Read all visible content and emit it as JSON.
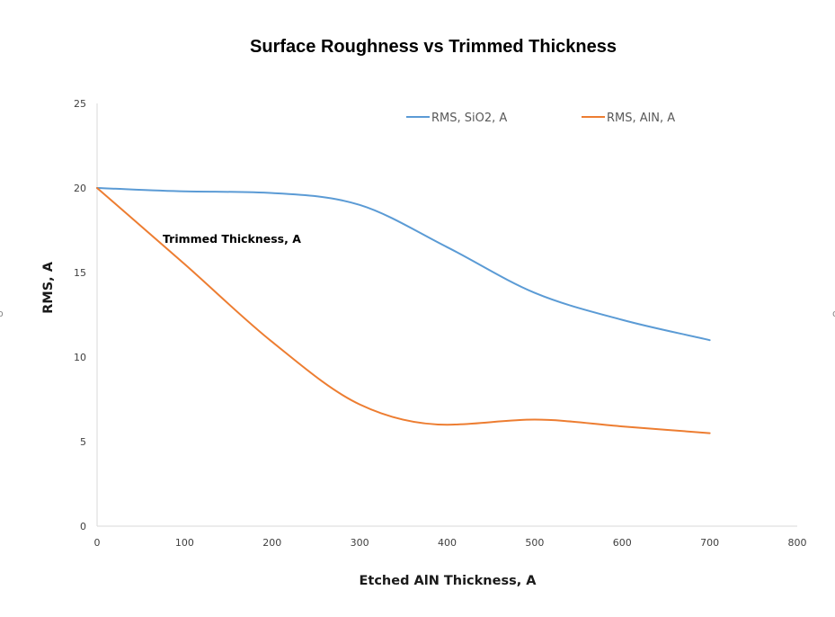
{
  "chart_data": {
    "type": "line",
    "title": "Surface Roughness vs Trimmed Thickness",
    "xlabel": "Etched AlN Thickness, A",
    "ylabel": "RMS, A",
    "xlim": [
      0,
      800
    ],
    "ylim": [
      0,
      25
    ],
    "xticks": [
      0,
      100,
      200,
      300,
      400,
      500,
      600,
      700,
      800
    ],
    "yticks": [
      0,
      5,
      10,
      15,
      20,
      25
    ],
    "grid": false,
    "smooth": true,
    "legend_position": "top",
    "annotation": "Trimmed Thickness, A",
    "series": [
      {
        "name": "RMS, SiO2, A",
        "color": "#5b9bd5",
        "x": [
          0,
          100,
          200,
          300,
          400,
          500,
          600,
          700
        ],
        "y": [
          20.0,
          19.8,
          19.7,
          19.0,
          16.5,
          13.8,
          12.2,
          11.0
        ]
      },
      {
        "name": "RMS, AlN, A",
        "color": "#ed7d31",
        "x": [
          0,
          100,
          200,
          300,
          400,
          500,
          600,
          700
        ],
        "y": [
          20.0,
          15.5,
          10.9,
          7.2,
          6.0,
          6.3,
          5.9,
          5.5
        ]
      }
    ]
  }
}
